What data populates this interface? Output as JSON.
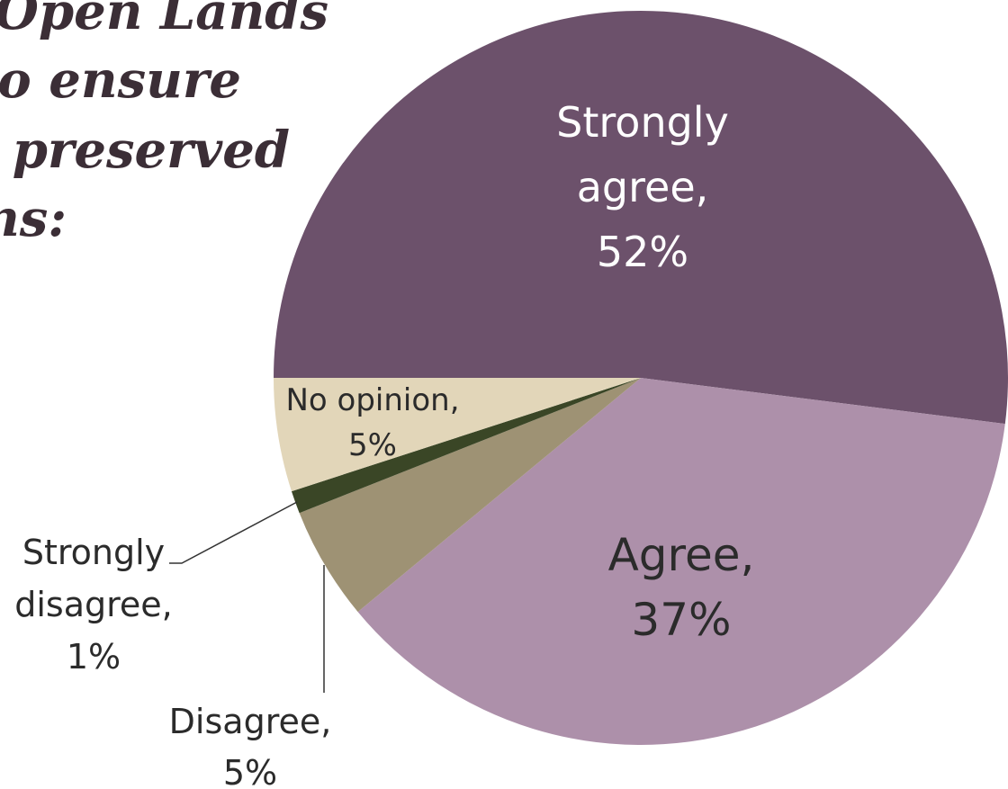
{
  "title_lines": [
    "Open Lands",
    "to ensure",
    "s preserved",
    "ns:"
  ],
  "chart_data": {
    "type": "pie",
    "title": "Open Lands … to ensure … s preserved … ns:",
    "slices": [
      {
        "name": "Strongly agree",
        "value": 52,
        "color": "#6c516b",
        "label_lines": [
          "Strongly",
          "agree,",
          "52%"
        ]
      },
      {
        "name": "Agree",
        "value": 37,
        "color": "#ad90aa",
        "label_lines": [
          "Agree,",
          "37%"
        ]
      },
      {
        "name": "Disagree",
        "value": 5,
        "color": "#9e9274",
        "label_lines": [
          "Disagree,",
          "5%"
        ]
      },
      {
        "name": "Strongly disagree",
        "value": 1,
        "color": "#3a4626",
        "label_lines": [
          "Strongly",
          "disagree,",
          "1%"
        ]
      },
      {
        "name": "No opinion",
        "value": 5,
        "color": "#e2d6b9",
        "label_lines": [
          "No opinion,",
          "5%"
        ]
      }
    ],
    "start_angle_deg": 180,
    "direction": "clockwise",
    "legend": "none"
  }
}
